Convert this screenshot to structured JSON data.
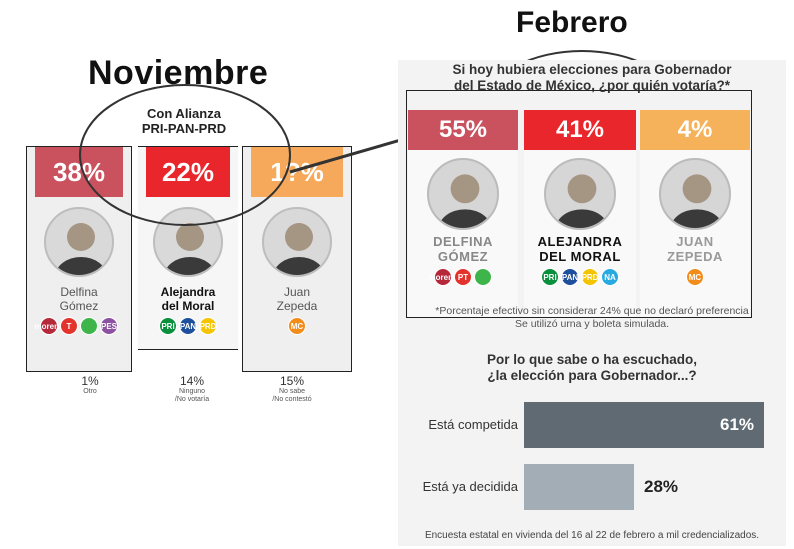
{
  "noviembre": {
    "title": "Noviembre",
    "alliance_label": "Con Alianza\nPRI-PAN-PRD",
    "candidates": [
      {
        "percent": "38%",
        "name": "Delfina\nGómez",
        "color": "#c9525e",
        "logos": [
          {
            "text": "morena",
            "color": "#b5283a"
          },
          {
            "text": "T",
            "color": "#e2342c"
          },
          {
            "text": "",
            "color": "#3db54a"
          },
          {
            "text": "PES",
            "color": "#8c51a0"
          }
        ]
      },
      {
        "percent": "22%",
        "name": "Alejandra\ndel Moral",
        "color": "#e8262c",
        "logos": [
          {
            "text": "PRI",
            "color": "#0a8f3c"
          },
          {
            "text": "PAN",
            "color": "#1d4f9c"
          },
          {
            "text": "PRD",
            "color": "#f5c400"
          }
        ]
      },
      {
        "percent": "1?%",
        "name": "Juan\nZepeda",
        "color": "#f6a95a",
        "logos": [
          {
            "text": "MC",
            "color": "#f28c1b"
          }
        ]
      }
    ],
    "notes": [
      {
        "value": "1%",
        "caption": "Otro"
      },
      {
        "value": "14%",
        "caption": "Ninguno\n/No votaría"
      },
      {
        "value": "15%",
        "caption": "No sabe\n/No contestó"
      }
    ]
  },
  "febrero": {
    "title": "Febrero",
    "question": "Si hoy hubiera elecciones para Gobernador\ndel Estado de México, ¿por quién votaría?*",
    "candidates": [
      {
        "percent": "55%",
        "name": "DELFINA\nGÓMEZ",
        "color": "#c9525e",
        "name_color": "#888888",
        "logos": [
          {
            "text": "morena",
            "color": "#b5283a"
          },
          {
            "text": "PT",
            "color": "#e2342c"
          },
          {
            "text": "",
            "color": "#3db54a"
          }
        ]
      },
      {
        "percent": "41%",
        "name": "ALEJANDRA\nDEL MORAL",
        "color": "#e8262c",
        "name_color": "#111111",
        "logos": [
          {
            "text": "PRI",
            "color": "#0a8f3c"
          },
          {
            "text": "PAN",
            "color": "#1d4f9c"
          },
          {
            "text": "PRD",
            "color": "#f5c400"
          },
          {
            "text": "NA",
            "color": "#27a9e1"
          }
        ]
      },
      {
        "percent": "4%",
        "name": "JUAN\nZEPEDA",
        "color": "#f6b25a",
        "name_color": "#999999",
        "logos": [
          {
            "text": "MC",
            "color": "#f28c1b"
          }
        ]
      }
    ],
    "footnote": "*Porcentaje efectivo sin considerar 24% que no declaró preferencia\nSe utilizó urna y boleta simulada.",
    "question2": "Por lo que sabe o ha escuchado,\n¿la elección para Gobernador...?",
    "source": "Encuesta estatal en vivienda del 16 al 22 de febrero a mil credencializados."
  },
  "chart_data": {
    "type": "bar",
    "categories": [
      "Está competida",
      "Está ya decidida"
    ],
    "values": [
      61,
      28
    ],
    "value_labels": [
      "61%",
      "28%"
    ],
    "colors": [
      "#5f6a73",
      "#a3adb5"
    ],
    "ylim": [
      0,
      61
    ]
  }
}
